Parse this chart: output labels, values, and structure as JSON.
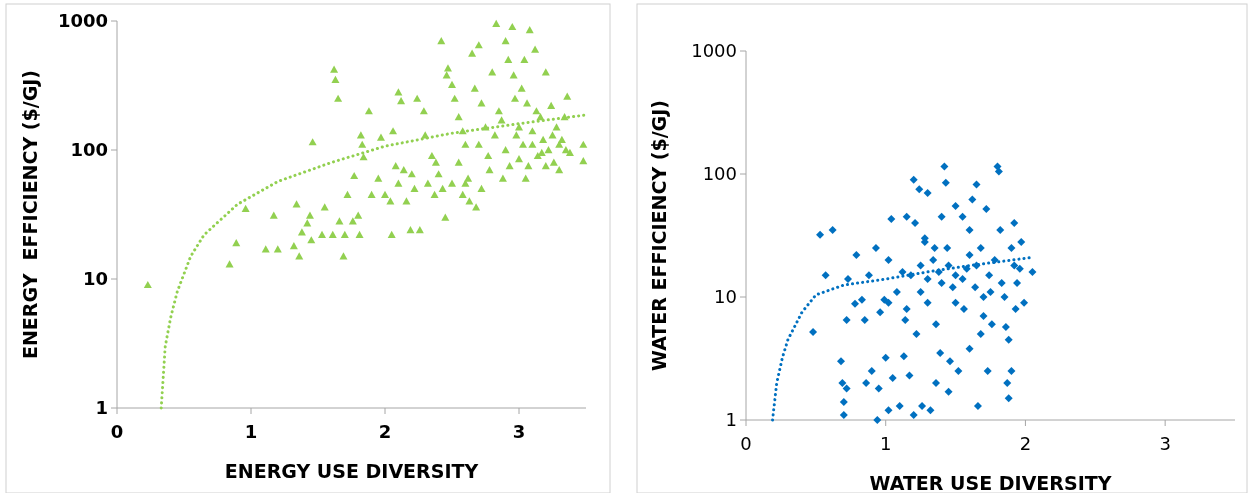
{
  "chart_data": [
    {
      "type": "scatter",
      "xlabel": "ENERGY USE DIVERSITY",
      "ylabel": "ENERGY  EFFICIENCY ($/GJ)",
      "log": "y",
      "xlim": [
        0,
        3.5
      ],
      "xticks": [
        0,
        1,
        2,
        3
      ],
      "ylim": [
        1,
        1000
      ],
      "yticks": [
        1,
        10,
        100,
        1000
      ],
      "grid": false,
      "series": [
        {
          "marker": "triangle",
          "color": "#92d050",
          "x": [
            0.23,
            0.84,
            0.89,
            0.96,
            1.11,
            1.17,
            1.2,
            1.32,
            1.34,
            1.36,
            1.38,
            1.42,
            1.44,
            1.45,
            1.46,
            1.53,
            1.55,
            1.61,
            1.62,
            1.63,
            1.65,
            1.66,
            1.69,
            1.7,
            1.72,
            1.76,
            1.77,
            1.8,
            1.81,
            1.82,
            1.83,
            1.84,
            1.88,
            1.9,
            1.95,
            1.97,
            2.05,
            2.04,
            2.06,
            2.1,
            2.12,
            2.14,
            2.16,
            2.19,
            2.22,
            2.24,
            2.26,
            2.29,
            2.3,
            2.32,
            2.35,
            2.38,
            2.42,
            2.43,
            2.45,
            2.46,
            2.47,
            2.5,
            2.52,
            2.55,
            2.58,
            2.6,
            2.62,
            2.63,
            2.65,
            2.67,
            2.68,
            2.7,
            2.72,
            2.75,
            2.77,
            2.8,
            2.83,
            2.85,
            2.88,
            2.9,
            2.92,
            2.95,
            2.96,
            2.98,
            3.0,
            3.02,
            3.04,
            3.05,
            3.06,
            3.08,
            3.1,
            3.12,
            3.14,
            3.16,
            3.18,
            3.2,
            3.22,
            3.24,
            3.26,
            3.28,
            3.3,
            3.32,
            3.34,
            3.36,
            3.38,
            3.48,
            3.48,
            2.55,
            2.58,
            2.6,
            2.7,
            2.72,
            2.78,
            2.82,
            2.87,
            2.9,
            2.93,
            2.97,
            3.0,
            3.03,
            3.07,
            3.1,
            3.13,
            3.17,
            3.2,
            3.25,
            3.3,
            3.35,
            2.2,
            2.08,
            2.0,
            2.1,
            2.37,
            2.5,
            2.4
          ],
          "values": [
            9,
            13,
            19,
            35,
            17,
            31,
            17,
            18,
            38,
            15,
            23,
            27,
            31,
            20,
            115,
            22,
            36,
            22,
            420,
            350,
            250,
            28,
            15,
            22,
            45,
            28,
            63,
            31,
            22,
            130,
            110,
            88,
            200,
            45,
            60,
            125,
            22,
            40,
            140,
            280,
            240,
            70,
            40,
            24,
            50,
            250,
            24,
            200,
            130,
            55,
            90,
            80,
            700,
            50,
            30,
            380,
            430,
            320,
            250,
            180,
            140,
            110,
            60,
            40,
            560,
            300,
            36,
            650,
            230,
            150,
            90,
            400,
            950,
            200,
            60,
            700,
            500,
            900,
            380,
            130,
            85,
            300,
            500,
            60,
            230,
            850,
            110,
            600,
            90,
            180,
            120,
            400,
            100,
            220,
            80,
            150,
            70,
            120,
            180,
            260,
            95,
            110,
            82,
            80,
            45,
            55,
            110,
            50,
            70,
            130,
            170,
            100,
            75,
            250,
            150,
            110,
            75,
            140,
            200,
            95,
            75,
            130,
            110,
            100,
            65,
            75,
            45,
            55,
            45,
            55,
            65
          ]
        },
        {
          "type": "line",
          "marker": "none",
          "color": "#92d050",
          "line_style": "dotted",
          "x": [
            0.33,
            0.36,
            0.4,
            0.45,
            0.55,
            0.65,
            0.9,
            1.2,
            1.6,
            2.0,
            2.5,
            3.0,
            3.5
          ],
          "values": [
            1,
            3,
            5,
            8,
            15,
            22,
            38,
            57,
            80,
            107,
            135,
            160,
            187
          ]
        }
      ]
    },
    {
      "type": "scatter",
      "xlabel": "WATER USE DIVERSITY",
      "ylabel": "WATER EFFICIENCY ($/GJ)",
      "log": "y",
      "xlim": [
        0,
        3.5
      ],
      "xticks": [
        0,
        1,
        2,
        3
      ],
      "ylim": [
        1,
        1000
      ],
      "yticks": [
        1,
        10,
        100,
        1000
      ],
      "grid": false,
      "series": [
        {
          "marker": "diamond",
          "color": "#0070c0",
          "x": [
            0.48,
            0.53,
            0.57,
            0.62,
            0.68,
            0.69,
            0.7,
            0.7,
            0.72,
            0.72,
            0.73,
            0.78,
            0.79,
            0.83,
            0.85,
            0.86,
            0.88,
            0.9,
            0.93,
            0.94,
            0.95,
            0.96,
            0.99,
            1.0,
            1.02,
            1.02,
            1.04,
            1.05,
            1.08,
            1.1,
            1.12,
            1.13,
            1.14,
            1.15,
            1.17,
            1.2,
            1.2,
            1.21,
            1.22,
            1.24,
            1.25,
            1.26,
            1.28,
            1.3,
            1.3,
            1.32,
            1.34,
            1.36,
            1.36,
            1.38,
            1.39,
            1.4,
            1.42,
            1.43,
            1.44,
            1.45,
            1.46,
            1.48,
            1.5,
            1.5,
            1.52,
            1.55,
            1.56,
            1.58,
            1.6,
            1.6,
            1.62,
            1.64,
            1.65,
            1.66,
            1.68,
            1.7,
            1.72,
            1.73,
            1.74,
            1.76,
            1.78,
            1.8,
            1.81,
            1.82,
            1.83,
            1.85,
            1.86,
            1.87,
            1.88,
            1.88,
            1.9,
            1.9,
            1.92,
            1.93,
            1.94,
            1.96,
            1.97,
            1.99,
            2.05,
            1.25,
            1.3,
            1.35,
            1.45,
            1.55,
            1.65,
            1.7,
            1.75,
            1.6,
            1.4,
            1.18,
            1.28,
            1.5,
            1.68,
            1.92,
            1.15,
            1.02
          ],
          "values": [
            5.2,
            32,
            15,
            35,
            3,
            2,
            1.1,
            1.4,
            1.8,
            6.5,
            14,
            8.8,
            22,
            9.5,
            6.5,
            2,
            15,
            2.5,
            25,
            1,
            1.8,
            7.5,
            9.5,
            3.2,
            20,
            1.2,
            43,
            2.2,
            11,
            1.3,
            16,
            3.3,
            6.5,
            45,
            2.3,
            90,
            1.1,
            40,
            5,
            75,
            18,
            1.3,
            28,
            70,
            9,
            1.2,
            20,
            6,
            2,
            16,
            3.5,
            45,
            115,
            85,
            25,
            1.7,
            3,
            12,
            55,
            15,
            2.5,
            45,
            8,
            17,
            35,
            3.8,
            62,
            12,
            82,
            1.3,
            25,
            7,
            52,
            2.5,
            15,
            6,
            20,
            115,
            105,
            35,
            13,
            10,
            5.7,
            2,
            1.5,
            4.5,
            2.5,
            25,
            40,
            8,
            13,
            17,
            28,
            9,
            16,
            11,
            14,
            25,
            18,
            14,
            18,
            10,
            11,
            22,
            13,
            15,
            30,
            9,
            5,
            18,
            8,
            9
          ]
        },
        {
          "type": "line",
          "marker": "none",
          "color": "#0070c0",
          "line_style": "dotted",
          "x": [
            0.19,
            0.22,
            0.26,
            0.3,
            0.4,
            0.5,
            0.7,
            1.0,
            1.3,
            1.6,
            2.05
          ],
          "values": [
            1,
            2,
            3.2,
            4.5,
            7.5,
            10.4,
            12.5,
            14,
            16,
            18,
            21
          ]
        }
      ]
    }
  ]
}
